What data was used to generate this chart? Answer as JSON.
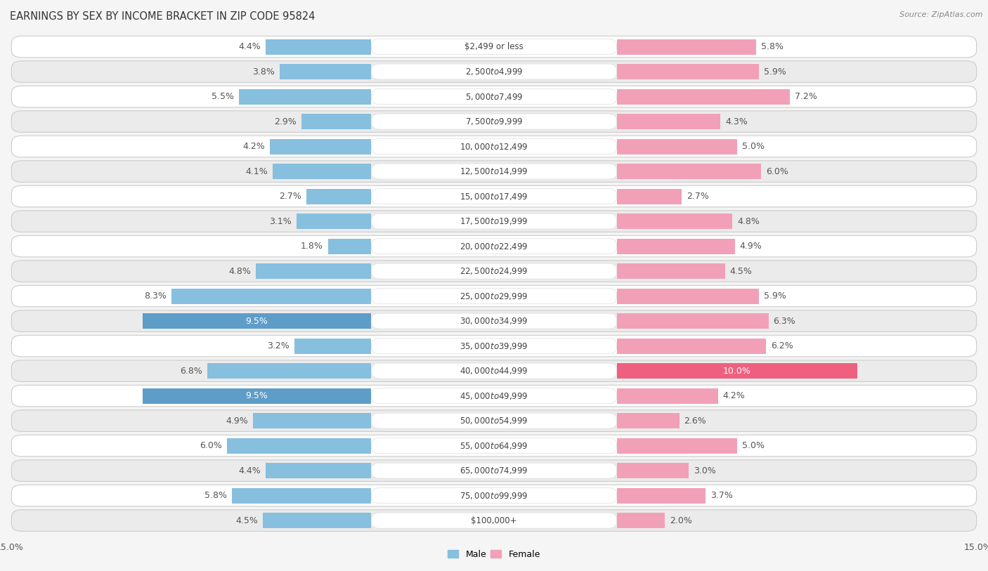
{
  "title": "EARNINGS BY SEX BY INCOME BRACKET IN ZIP CODE 95824",
  "source": "Source: ZipAtlas.com",
  "categories": [
    "$2,499 or less",
    "$2,500 to $4,999",
    "$5,000 to $7,499",
    "$7,500 to $9,999",
    "$10,000 to $12,499",
    "$12,500 to $14,999",
    "$15,000 to $17,499",
    "$17,500 to $19,999",
    "$20,000 to $22,499",
    "$22,500 to $24,999",
    "$25,000 to $29,999",
    "$30,000 to $34,999",
    "$35,000 to $39,999",
    "$40,000 to $44,999",
    "$45,000 to $49,999",
    "$50,000 to $54,999",
    "$55,000 to $64,999",
    "$65,000 to $74,999",
    "$75,000 to $99,999",
    "$100,000+"
  ],
  "male_values": [
    4.4,
    3.8,
    5.5,
    2.9,
    4.2,
    4.1,
    2.7,
    3.1,
    1.8,
    4.8,
    8.3,
    9.5,
    3.2,
    6.8,
    9.5,
    4.9,
    6.0,
    4.4,
    5.8,
    4.5
  ],
  "female_values": [
    5.8,
    5.9,
    7.2,
    4.3,
    5.0,
    6.0,
    2.7,
    4.8,
    4.9,
    4.5,
    5.9,
    6.3,
    6.2,
    10.0,
    4.2,
    2.6,
    5.0,
    3.0,
    3.7,
    2.0
  ],
  "male_color": "#87BFDE",
  "female_color": "#F2A0B8",
  "male_highlight_color": "#5E9DC8",
  "female_highlight_color": "#EF6080",
  "bg_color": "#F5F5F5",
  "row_light": "#FFFFFF",
  "row_dark": "#EBEBEB",
  "row_pill_color": "#EBEBEB",
  "center_pill_color": "#FFFFFF",
  "sep_color": "#CCCCCC",
  "xlim": 15.0,
  "title_fontsize": 10.5,
  "source_fontsize": 8,
  "label_fontsize": 9,
  "category_fontsize": 8.5,
  "value_fontsize": 9
}
